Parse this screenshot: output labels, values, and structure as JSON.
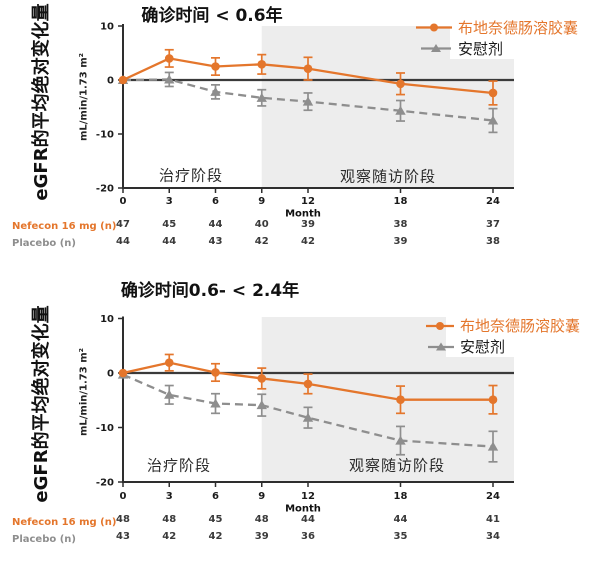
{
  "colors": {
    "nefecon_orange": "#E4762C",
    "placebo_gray": "#8E8E8E",
    "shade_gray": "#EDEDED",
    "axis": "#2e2e2e",
    "zero_line": "#3a3a3a",
    "table_number": "#3a3a3a",
    "tick_text": "#1a1a1a"
  },
  "chart_data": [
    {
      "type": "line",
      "title": "确诊时间 < 0.6年",
      "ylabel": "eGFR的平均绝对变化量",
      "yunit": "mL/min/1.73 m²",
      "xlabel": "Month",
      "x": [
        0,
        3,
        6,
        9,
        12,
        18,
        24
      ],
      "ylim": [
        -20,
        10
      ],
      "yticks": [
        10,
        0,
        -10,
        -20
      ],
      "grid": false,
      "legend_position": "top-right",
      "shaded_region": {
        "x_start": 9,
        "x_end": 24,
        "meaning": "观察随访阶段"
      },
      "phase_labels": [
        "治疗阶段",
        "观察随访阶段"
      ],
      "series": [
        {
          "name": "布地奈德肠溶胶囊",
          "color": "#E4762C",
          "marker": "circle",
          "line_style": "solid",
          "values": [
            0,
            4.0,
            2.5,
            2.9,
            2.1,
            -0.7,
            -2.4
          ],
          "errors": [
            0,
            1.6,
            1.6,
            1.8,
            2.1,
            2.0,
            2.2
          ]
        },
        {
          "name": "安慰剂",
          "color": "#8E8E8E",
          "marker": "triangle",
          "line_style": "dashed",
          "values": [
            0,
            0.1,
            -2.2,
            -3.3,
            -4.0,
            -5.7,
            -7.5
          ],
          "errors": [
            0,
            1.3,
            1.3,
            1.5,
            1.6,
            1.9,
            2.2
          ]
        }
      ],
      "table": [
        {
          "label": "Nefecon 16 mg (n)",
          "values": [
            47,
            45,
            44,
            40,
            39,
            38,
            37
          ]
        },
        {
          "label": "Placebo (n)",
          "values": [
            44,
            44,
            43,
            42,
            42,
            39,
            38
          ]
        }
      ]
    },
    {
      "type": "line",
      "title": "确诊时间0.6- < 2.4年",
      "ylabel": "eGFR的平均绝对变化量",
      "yunit": "mL/min/1.73 m²",
      "xlabel": "Month",
      "x": [
        0,
        3,
        6,
        9,
        12,
        18,
        24
      ],
      "ylim": [
        -20,
        10
      ],
      "yticks": [
        10,
        0,
        -10,
        -20
      ],
      "grid": false,
      "legend_position": "top-right",
      "shaded_region": {
        "x_start": 9,
        "x_end": 24,
        "meaning": "观察随访阶段"
      },
      "phase_labels": [
        "治疗阶段",
        "观察随访阶段"
      ],
      "series": [
        {
          "name": "布地奈德肠溶胶囊",
          "color": "#E4762C",
          "marker": "circle",
          "line_style": "solid",
          "values": [
            0,
            1.9,
            0.1,
            -1.0,
            -2.0,
            -4.9,
            -4.9
          ],
          "errors": [
            0,
            1.5,
            1.6,
            1.9,
            1.8,
            2.5,
            2.6
          ]
        },
        {
          "name": "安慰剂",
          "color": "#8E8E8E",
          "marker": "triangle",
          "line_style": "dashed",
          "values": [
            -0.3,
            -4.0,
            -5.6,
            -5.9,
            -8.2,
            -12.4,
            -13.5
          ],
          "errors": [
            0,
            1.7,
            1.8,
            2.0,
            1.9,
            2.6,
            2.8
          ]
        }
      ],
      "table": [
        {
          "label": "Nefecon 16 mg (n)",
          "values": [
            48,
            48,
            45,
            48,
            44,
            44,
            41
          ],
          "label_color": "#E4762C"
        },
        {
          "label": "Placebo (n)",
          "values": [
            43,
            42,
            42,
            39,
            36,
            35,
            34
          ],
          "label_color": "#8E8E8E"
        }
      ]
    }
  ]
}
